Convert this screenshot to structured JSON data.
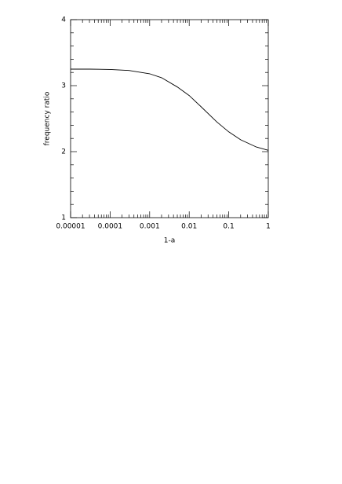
{
  "chart_data": {
    "type": "line",
    "x_label": "1-a",
    "y_label": "frequency ratio",
    "x": [
      1e-05,
      3e-05,
      0.0001,
      0.0003,
      0.001,
      0.002,
      0.005,
      0.01,
      0.02,
      0.05,
      0.1,
      0.2,
      0.5,
      1
    ],
    "series": [
      {
        "color": "#000000",
        "values": [
          3.25,
          3.25,
          3.245,
          3.23,
          3.18,
          3.12,
          2.98,
          2.85,
          2.68,
          2.45,
          2.3,
          2.18,
          2.07,
          2.02
        ]
      }
    ],
    "xlim": [
      1e-05,
      1
    ],
    "xticks": [
      1e-05,
      0.0001,
      0.001,
      0.01,
      0.1,
      1
    ],
    "xscale": "log",
    "ylim": [
      1,
      4
    ],
    "yticks": [
      1,
      2,
      3,
      4
    ]
  }
}
